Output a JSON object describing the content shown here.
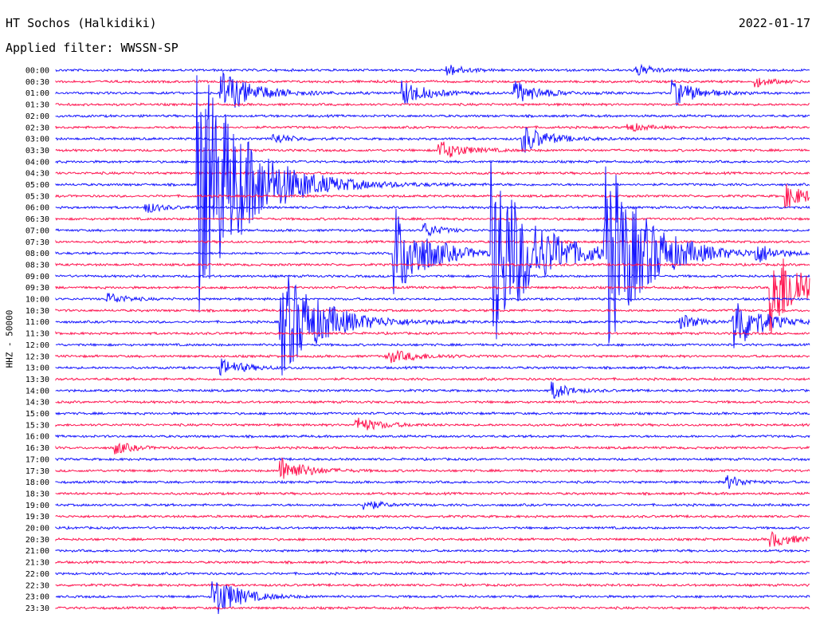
{
  "header": {
    "station": "HT Sochos (Halkidiki)",
    "date": "2022-01-17",
    "filter": "Applied filter: WWSSN-SP"
  },
  "chart_data": {
    "type": "line",
    "title": "HT Sochos (Halkidiki)",
    "ylabel": "HHZ - 50000",
    "xlabel": "",
    "colors": [
      "#1414ff",
      "#ff1450"
    ],
    "row_labels": [
      "00:00",
      "00:30",
      "01:00",
      "01:30",
      "02:00",
      "02:30",
      "03:00",
      "03:30",
      "04:00",
      "04:30",
      "05:00",
      "05:30",
      "06:00",
      "06:30",
      "07:00",
      "07:30",
      "08:00",
      "08:30",
      "09:00",
      "09:30",
      "10:00",
      "10:30",
      "11:00",
      "11:30",
      "12:00",
      "12:30",
      "13:00",
      "13:30",
      "14:00",
      "14:30",
      "15:00",
      "15:30",
      "16:00",
      "16:30",
      "17:00",
      "17:30",
      "18:00",
      "18:30",
      "19:00",
      "19:30",
      "20:00",
      "20:30",
      "21:00",
      "21:30",
      "22:00",
      "22:30",
      "23:00",
      "23:30"
    ],
    "events": [
      {
        "row": 0,
        "pos": 0.52,
        "amp": 8,
        "dur": 0.02
      },
      {
        "row": 0,
        "pos": 0.77,
        "amp": 8,
        "dur": 0.02
      },
      {
        "row": 1,
        "pos": 0.93,
        "amp": 6,
        "dur": 0.02
      },
      {
        "row": 2,
        "pos": 0.22,
        "amp": 28,
        "dur": 0.04
      },
      {
        "row": 2,
        "pos": 0.46,
        "amp": 16,
        "dur": 0.03
      },
      {
        "row": 2,
        "pos": 0.61,
        "amp": 14,
        "dur": 0.03
      },
      {
        "row": 2,
        "pos": 0.82,
        "amp": 16,
        "dur": 0.03
      },
      {
        "row": 5,
        "pos": 0.76,
        "amp": 6,
        "dur": 0.02
      },
      {
        "row": 6,
        "pos": 0.29,
        "amp": 7,
        "dur": 0.02
      },
      {
        "row": 6,
        "pos": 0.62,
        "amp": 18,
        "dur": 0.03
      },
      {
        "row": 7,
        "pos": 0.51,
        "amp": 12,
        "dur": 0.03
      },
      {
        "row": 10,
        "pos": 0.19,
        "amp": 160,
        "dur": 0.06
      },
      {
        "row": 11,
        "pos": 0.97,
        "amp": 14,
        "dur": 0.03
      },
      {
        "row": 12,
        "pos": 0.12,
        "amp": 7,
        "dur": 0.02
      },
      {
        "row": 14,
        "pos": 0.49,
        "amp": 9,
        "dur": 0.02
      },
      {
        "row": 16,
        "pos": 0.45,
        "amp": 60,
        "dur": 0.04
      },
      {
        "row": 16,
        "pos": 0.58,
        "amp": 120,
        "dur": 0.05
      },
      {
        "row": 16,
        "pos": 0.73,
        "amp": 120,
        "dur": 0.05
      },
      {
        "row": 16,
        "pos": 0.93,
        "amp": 12,
        "dur": 0.02
      },
      {
        "row": 19,
        "pos": 0.95,
        "amp": 60,
        "dur": 0.04
      },
      {
        "row": 20,
        "pos": 0.07,
        "amp": 8,
        "dur": 0.02
      },
      {
        "row": 22,
        "pos": 0.3,
        "amp": 70,
        "dur": 0.05
      },
      {
        "row": 22,
        "pos": 0.9,
        "amp": 40,
        "dur": 0.03
      },
      {
        "row": 22,
        "pos": 0.83,
        "amp": 10,
        "dur": 0.02
      },
      {
        "row": 25,
        "pos": 0.44,
        "amp": 8,
        "dur": 0.04
      },
      {
        "row": 26,
        "pos": 0.22,
        "amp": 10,
        "dur": 0.03
      },
      {
        "row": 28,
        "pos": 0.66,
        "amp": 11,
        "dur": 0.02
      },
      {
        "row": 31,
        "pos": 0.4,
        "amp": 9,
        "dur": 0.03
      },
      {
        "row": 33,
        "pos": 0.08,
        "amp": 8,
        "dur": 0.02
      },
      {
        "row": 35,
        "pos": 0.3,
        "amp": 16,
        "dur": 0.03
      },
      {
        "row": 36,
        "pos": 0.89,
        "amp": 9,
        "dur": 0.02
      },
      {
        "row": 38,
        "pos": 0.41,
        "amp": 7,
        "dur": 0.02
      },
      {
        "row": 41,
        "pos": 0.95,
        "amp": 9,
        "dur": 0.03
      },
      {
        "row": 46,
        "pos": 0.21,
        "amp": 28,
        "dur": 0.03
      }
    ]
  }
}
